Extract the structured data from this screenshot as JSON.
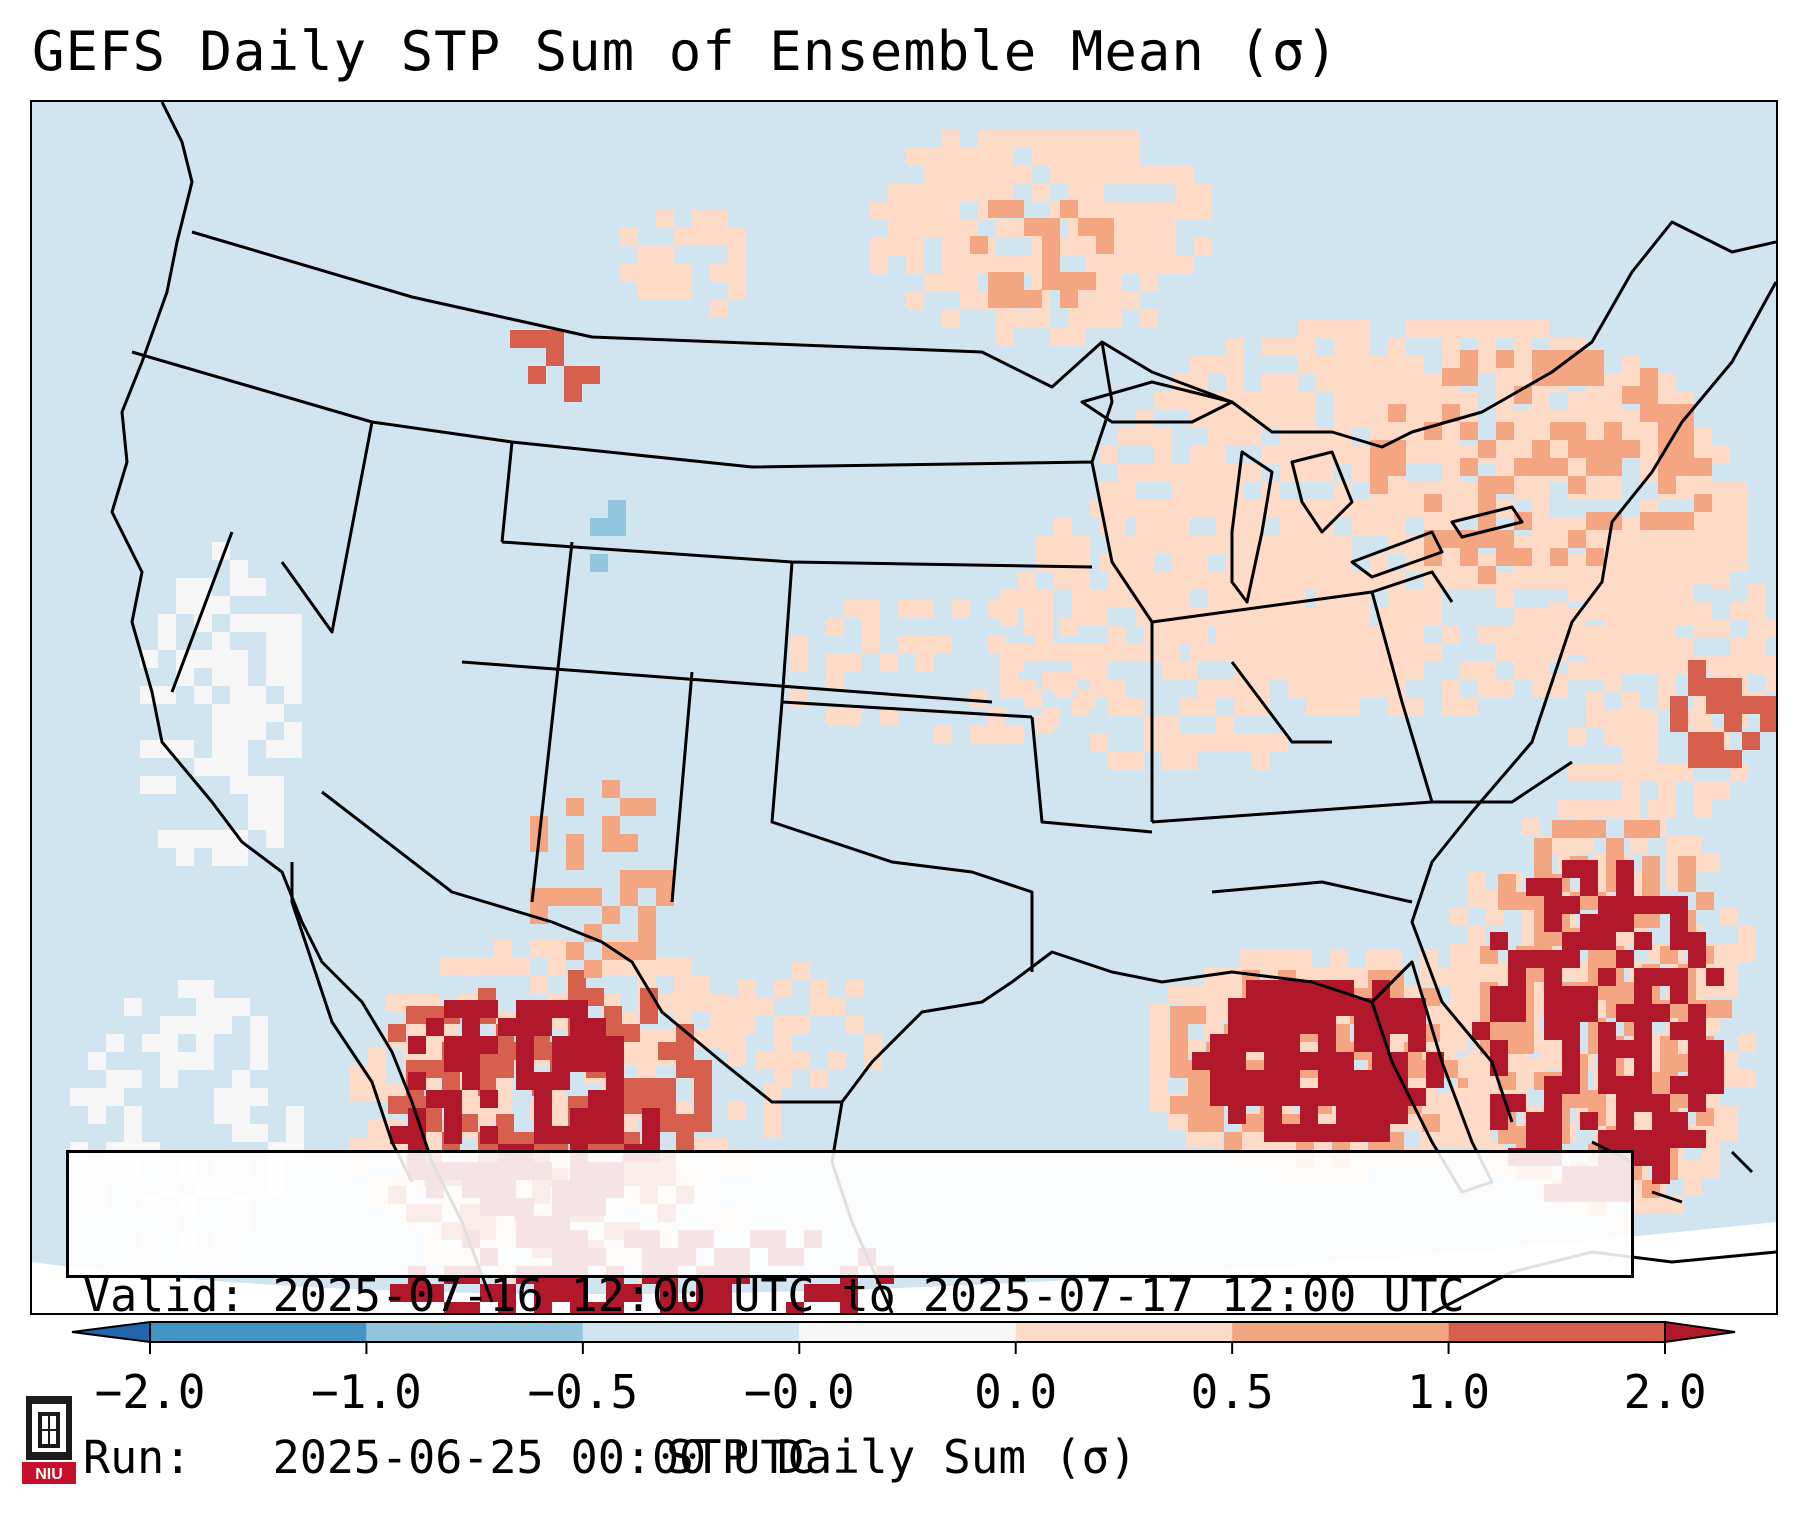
{
  "title": "GEFS Daily STP Sum of Ensemble Mean (σ)",
  "info": {
    "valid_label": "Valid:",
    "valid_value": "2025-07-16 12:00 UTC to 2025-07-17 12:00 UTC",
    "run_label": "Run:",
    "run_value": "2025-06-25 00:00 UTC"
  },
  "colorbar": {
    "label": "STP Daily Sum (σ)",
    "ticks": [
      "−2.0",
      "−1.0",
      "−0.5",
      "−0.0",
      "0.0",
      "0.5",
      "1.0",
      "2.0"
    ],
    "bins": [
      {
        "from": "-2.0",
        "to": "-1.0",
        "color": "#4393c3"
      },
      {
        "from": "-1.0",
        "to": "-0.5",
        "color": "#92c5de"
      },
      {
        "from": "-0.5",
        "to": "-0.0",
        "color": "#d1e5f0"
      },
      {
        "from": "-0.0",
        "to": "0.0",
        "color": "#f7f7f7"
      },
      {
        "from": "0.0",
        "to": "0.5",
        "color": "#fddbc7"
      },
      {
        "from": "0.5",
        "to": "1.0",
        "color": "#f4a582"
      },
      {
        "from": "1.0",
        "to": "2.0",
        "color": "#d6604d"
      }
    ],
    "under_color": "#2166ac",
    "over_color": "#b2182b"
  },
  "logo": {
    "text": "NIU",
    "color": "#c8102e"
  },
  "map": {
    "background_color": "#d1e5f0",
    "outside_color": "#ffffff",
    "regions": [
      {
        "name": "Great Lakes & Northeast",
        "level": "0.0 to 0.5",
        "color": "#fddbc7"
      },
      {
        "name": "Gulf of Mexico",
        "level": ">2.0",
        "color": "#b2182b"
      },
      {
        "name": "Atlantic off Southeast US",
        "level": "1.0 to >2.0",
        "color": "#b2182b"
      },
      {
        "name": "Northern Mexico",
        "level": ">2.0",
        "color": "#b2182b"
      },
      {
        "name": "Pacific off California",
        "level": "-0.0 to 0.0",
        "color": "#f7f7f7"
      }
    ]
  }
}
